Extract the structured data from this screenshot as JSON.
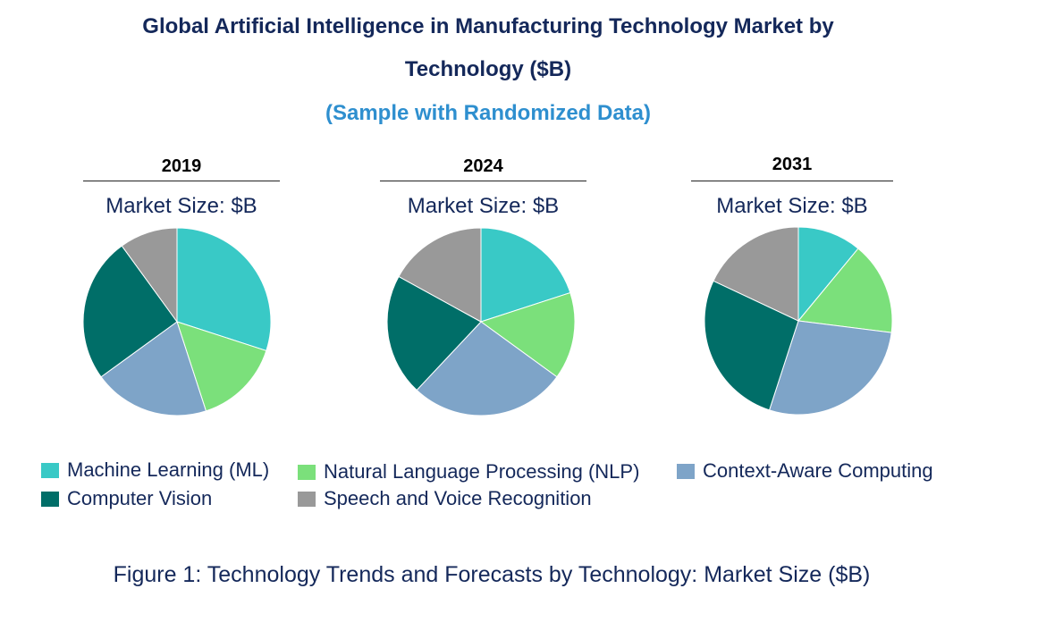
{
  "title_line1": "Global Artificial Intelligence in Manufacturing Technology Market by",
  "title_line2": "Technology ($B)",
  "subtitle": "(Sample with Randomized Data)",
  "market_size_label": "Market Size: $B",
  "caption": "Figure 1: Technology Trends and Forecasts by Technology: Market Size ($B)",
  "colors": {
    "ml": "#39c9c6",
    "nlp": "#7be07b",
    "context": "#7ea4c8",
    "cv": "#006e68",
    "speech": "#999999"
  },
  "chart_data": [
    {
      "type": "pie",
      "title": "2019",
      "subtitle": "Market Size: $B",
      "categories": [
        "Machine Learning (ML)",
        "Natural Language Processing (NLP)",
        "Context-Aware Computing",
        "Computer Vision",
        "Speech and Voice Recognition"
      ],
      "values": [
        30,
        15,
        20,
        25,
        10
      ]
    },
    {
      "type": "pie",
      "title": "2024",
      "subtitle": "Market Size: $B",
      "categories": [
        "Machine Learning (ML)",
        "Natural Language Processing (NLP)",
        "Context-Aware Computing",
        "Computer Vision",
        "Speech and Voice Recognition"
      ],
      "values": [
        20,
        15,
        27,
        21,
        17
      ]
    },
    {
      "type": "pie",
      "title": "2031",
      "subtitle": "Market Size: $B",
      "categories": [
        "Machine Learning (ML)",
        "Natural Language Processing (NLP)",
        "Context-Aware Computing",
        "Computer Vision",
        "Speech and Voice Recognition"
      ],
      "values": [
        11,
        16,
        28,
        27,
        18
      ]
    }
  ],
  "legend": [
    {
      "label": "Machine Learning (ML)",
      "color": "#39c9c6"
    },
    {
      "label": "Natural Language Processing (NLP)",
      "color": "#7be07b"
    },
    {
      "label": "Context-Aware Computing",
      "color": "#7ea4c8"
    },
    {
      "label": "Computer Vision",
      "color": "#006e68"
    },
    {
      "label": "Speech and Voice Recognition",
      "color": "#999999"
    }
  ]
}
